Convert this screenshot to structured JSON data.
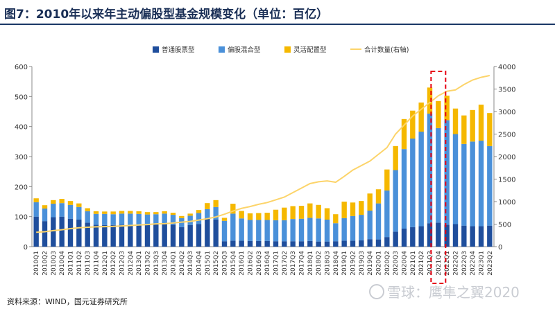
{
  "header": {
    "title": "图7：2010年以来年主动偏股型基金规模变化（单位：百亿）"
  },
  "footer": {
    "source": "资料来源：WIND，国元证券研究所",
    "watermark": "雪球：鹰隼之翼2020"
  },
  "chart_data": {
    "type": "bar",
    "stacked": true,
    "categories": [
      "2010Q1",
      "2010Q2",
      "2010Q3",
      "2010Q4",
      "2011Q1",
      "2011Q2",
      "2011Q3",
      "2011Q4",
      "2012Q1",
      "2012Q2",
      "2012Q3",
      "2012Q4",
      "2013Q1",
      "2013Q2",
      "2013Q3",
      "2013Q4",
      "2014Q1",
      "2014Q2",
      "2014Q3",
      "2014Q4",
      "2015Q1",
      "2015Q2",
      "2015Q3",
      "2015Q4",
      "2016Q1",
      "2016Q2",
      "2016Q3",
      "2016Q4",
      "2017Q1",
      "2017Q2",
      "2017Q3",
      "2017Q4",
      "2018Q1",
      "2018Q2",
      "2018Q3",
      "2018Q4",
      "2019Q1",
      "2019Q2",
      "2019Q3",
      "2019Q4",
      "2020Q1",
      "2020Q2",
      "2020Q3",
      "2020Q4",
      "2021Q1",
      "2021Q2",
      "2021Q3",
      "2021Q4",
      "2022Q1",
      "2022Q2",
      "2022Q3",
      "2022Q4",
      "2023Q1",
      "2023Q2"
    ],
    "series": [
      {
        "name": "普通股票型",
        "axis": "left",
        "color": "#1f4e9c",
        "values": [
          100,
          85,
          98,
          100,
          93,
          90,
          80,
          73,
          72,
          72,
          73,
          73,
          72,
          72,
          75,
          75,
          73,
          65,
          72,
          75,
          95,
          90,
          18,
          20,
          20,
          19,
          19,
          19,
          18,
          18,
          18,
          18,
          19,
          17,
          17,
          18,
          20,
          20,
          21,
          25,
          24,
          32,
          50,
          60,
          65,
          68,
          78,
          80,
          73,
          75,
          70,
          68,
          68,
          70
        ]
      },
      {
        "name": "偏股混合型",
        "axis": "left",
        "color": "#4a90d9",
        "values": [
          48,
          42,
          45,
          45,
          46,
          42,
          38,
          36,
          37,
          36,
          37,
          37,
          37,
          35,
          33,
          35,
          33,
          30,
          31,
          37,
          30,
          42,
          68,
          90,
          74,
          70,
          70,
          70,
          70,
          70,
          74,
          75,
          77,
          77,
          73,
          60,
          75,
          82,
          85,
          95,
          120,
          155,
          205,
          265,
          295,
          315,
          365,
          315,
          348,
          300,
          272,
          282,
          285,
          265
        ]
      },
      {
        "name": "灵活配置型",
        "axis": "left",
        "color": "#f5b800",
        "values": [
          13,
          11,
          12,
          14,
          13,
          12,
          10,
          9,
          8,
          9,
          9,
          9,
          9,
          8,
          7,
          8,
          7,
          7,
          7,
          10,
          20,
          23,
          10,
          33,
          25,
          22,
          23,
          24,
          35,
          42,
          43,
          43,
          48,
          45,
          38,
          30,
          55,
          45,
          46,
          57,
          47,
          70,
          80,
          100,
          93,
          97,
          87,
          90,
          82,
          85,
          95,
          105,
          120,
          110
        ]
      },
      {
        "name": "合计数量(右轴)",
        "axis": "right",
        "type": "line",
        "color": "#fcd46a",
        "values": [
          320,
          330,
          355,
          375,
          400,
          420,
          430,
          440,
          445,
          450,
          460,
          470,
          480,
          490,
          505,
          510,
          525,
          545,
          560,
          590,
          620,
          660,
          720,
          790,
          850,
          890,
          940,
          980,
          1040,
          1100,
          1200,
          1300,
          1400,
          1440,
          1460,
          1430,
          1560,
          1700,
          1800,
          1900,
          2050,
          2200,
          2500,
          2700,
          2900,
          3050,
          3200,
          3350,
          3450,
          3480,
          3600,
          3700,
          3760,
          3800
        ]
      }
    ],
    "y_left": {
      "min": 0,
      "max": 600,
      "ticks": [
        0,
        100,
        200,
        300,
        400,
        500,
        600
      ]
    },
    "y_right": {
      "min": 0,
      "max": 4000,
      "ticks": [
        0,
        500,
        1000,
        1500,
        2000,
        2500,
        3000,
        3500,
        4000
      ]
    },
    "legend_position": "top",
    "highlight": {
      "category": "2021Q4",
      "style": "red dashed box"
    }
  }
}
